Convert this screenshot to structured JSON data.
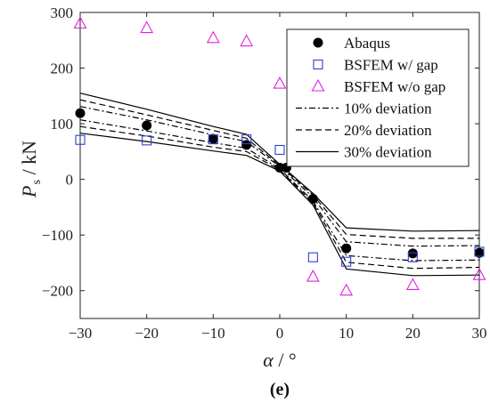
{
  "chart_data": {
    "type": "scatter",
    "xlabel_symbol": "α",
    "xlabel_unit": " / °",
    "ylabel_main": "P",
    "ylabel_sub": "s",
    "ylabel_unit": " / kN",
    "caption": "(e)",
    "xlim": [
      -30,
      30
    ],
    "ylim": [
      -250,
      300
    ],
    "xticks": [
      -30,
      -20,
      -10,
      0,
      10,
      20,
      30
    ],
    "yticks": [
      -200,
      -100,
      0,
      100,
      200,
      300
    ],
    "xtick_labels": [
      "−30",
      "−20",
      "−10",
      "0",
      "10",
      "20",
      "30"
    ],
    "ytick_labels": [
      "−200",
      "−100",
      "0",
      "100",
      "200",
      "300"
    ],
    "grid": false,
    "legend_position": "top-right",
    "series": [
      {
        "name": "Abaqus",
        "marker": "filled-circle",
        "color": "#000000",
        "x": [
          -30,
          -20,
          -10,
          -5,
          0,
          1,
          5,
          10,
          20,
          30
        ],
        "y": [
          119,
          97,
          73,
          62,
          21,
          21,
          -35,
          -124,
          -133,
          -132
        ]
      },
      {
        "name": "BSFEM w/ gap",
        "marker": "open-square",
        "color": "#2f3fd0",
        "x": [
          -30,
          -20,
          -10,
          -5,
          0,
          5,
          10,
          20,
          30
        ],
        "y": [
          71,
          70,
          72,
          72,
          53,
          -140,
          -148,
          -140,
          -130
        ]
      },
      {
        "name": "BSFEM w/o gap",
        "marker": "open-triangle",
        "color": "#e020e0",
        "x": [
          -30,
          -20,
          -10,
          -5,
          0,
          5,
          10,
          20,
          30
        ],
        "y": [
          280,
          272,
          254,
          248,
          172,
          -175,
          -200,
          -190,
          -172
        ]
      }
    ],
    "bands": [
      {
        "name": "10% deviation",
        "style": "dashdot",
        "x": [
          -30,
          -20,
          -10,
          -5,
          0,
          5,
          10,
          20,
          30
        ],
        "upper": [
          131,
          107,
          80,
          68,
          23,
          -32,
          -112,
          -120,
          -119
        ],
        "lower": [
          107,
          87,
          66,
          56,
          19,
          -39,
          -137,
          -146,
          -145
        ]
      },
      {
        "name": "20% deviation",
        "style": "dashed",
        "x": [
          -30,
          -20,
          -10,
          -5,
          0,
          5,
          10,
          20,
          30
        ],
        "upper": [
          143,
          116,
          88,
          74,
          25,
          -28,
          -99,
          -106,
          -106
        ],
        "lower": [
          95,
          78,
          58,
          50,
          17,
          -42,
          -149,
          -160,
          -158
        ]
      },
      {
        "name": "30% deviation",
        "style": "solid",
        "x": [
          -30,
          -20,
          -10,
          -5,
          0,
          5,
          10,
          20,
          30
        ],
        "upper": [
          155,
          126,
          95,
          81,
          27,
          -25,
          -87,
          -93,
          -92
        ],
        "lower": [
          83,
          68,
          51,
          43,
          15,
          -46,
          -161,
          -173,
          -172
        ]
      }
    ]
  }
}
